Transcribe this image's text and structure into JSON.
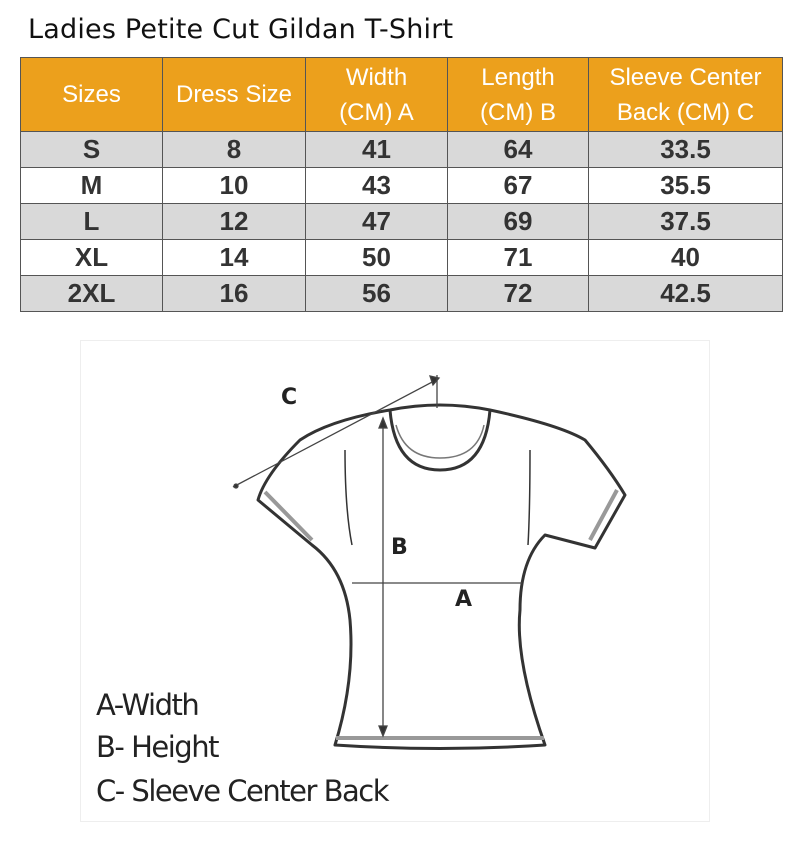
{
  "title": "Ladies Petite Cut Gildan T-Shirt",
  "table": {
    "headers": [
      "Sizes",
      "Dress Size",
      "Width (CM) A",
      "Length (CM) B",
      "Sleeve Center Back (CM) C"
    ],
    "header_lines": [
      [
        "Sizes"
      ],
      [
        "Dress Size"
      ],
      [
        "Width",
        "(CM) A"
      ],
      [
        "Length",
        "(CM) B"
      ],
      [
        "Sleeve Center",
        "Back (CM) C"
      ]
    ],
    "rows": [
      [
        "S",
        "8",
        "41",
        "64",
        "33.5"
      ],
      [
        "M",
        "10",
        "43",
        "67",
        "35.5"
      ],
      [
        "L",
        "12",
        "47",
        "69",
        "37.5"
      ],
      [
        "XL",
        "14",
        "50",
        "71",
        "40"
      ],
      [
        "2XL",
        "16",
        "56",
        "72",
        "42.5"
      ]
    ],
    "header_color": "#eca01c",
    "stripe_color": "#d9d9d9"
  },
  "diagram": {
    "labels": {
      "a": "A",
      "b": "B",
      "c": "C"
    },
    "legend": [
      "A-Width",
      "B- Height",
      "C- Sleeve Center Back"
    ]
  }
}
